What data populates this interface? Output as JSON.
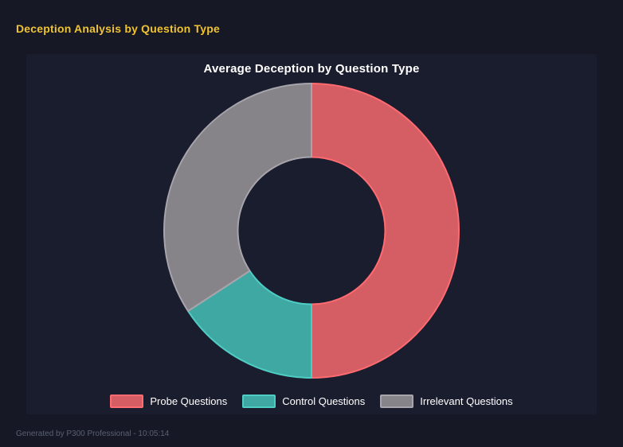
{
  "page": {
    "title": "Deception Analysis by Question Type",
    "footer": "Generated by P300 Professional - 10:05:14"
  },
  "colors": {
    "background": "#161826",
    "panel": "#1a1d2e",
    "header_text": "#f0c330",
    "chart_title_text": "#ffffff",
    "legend_text": "#ffffff",
    "footer_text": "#5a6070"
  },
  "chart_data": {
    "type": "pie",
    "variant": "donut",
    "title": "Average Deception by Question Type",
    "categories": [
      "Probe Questions",
      "Control Questions",
      "Irrelevant Questions"
    ],
    "values": [
      50.0,
      15.8,
      34.2
    ],
    "values_note": "percent of circle, estimated from segment angles (180deg, 57deg, 123deg)",
    "start_angle_deg": 0,
    "direction": "clockwise",
    "inner_radius_ratio": 0.5,
    "legend_position": "bottom",
    "segments": [
      {
        "label": "Probe Questions",
        "share_pct": 50.0,
        "fill": "#d55e64",
        "border": "#ff6b70"
      },
      {
        "label": "Control Questions",
        "share_pct": 15.8,
        "fill": "#3fa8a2",
        "border": "#4ecdc4"
      },
      {
        "label": "Irrelevant Questions",
        "share_pct": 34.2,
        "fill": "#868489",
        "border": "#a7a5ab"
      }
    ]
  }
}
